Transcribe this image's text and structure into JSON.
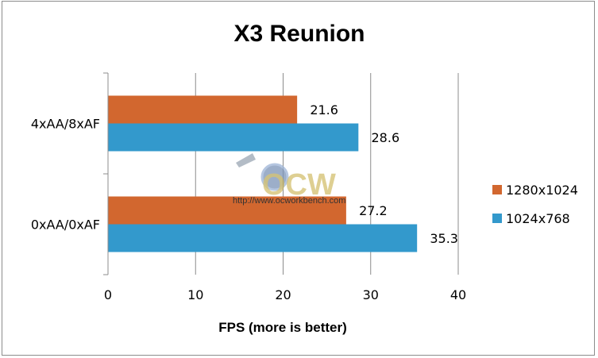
{
  "chart_data": {
    "type": "bar",
    "orientation": "horizontal",
    "title": "X3 Reunion",
    "xlabel": "FPS (more is better)",
    "ylabel": "",
    "categories": [
      "4xAA/8xAF",
      "0xAA/0xAF"
    ],
    "series": [
      {
        "name": "1280x1024",
        "color": "#D2672F",
        "values": [
          21.6,
          27.2
        ]
      },
      {
        "name": "1024x768",
        "color": "#3399CC",
        "values": [
          28.6,
          35.3
        ]
      }
    ],
    "xlim": [
      0,
      40
    ],
    "xticks": [
      0,
      10,
      20,
      30,
      40
    ],
    "grid": "vertical",
    "legend_position": "right",
    "data_labels": true
  },
  "watermark": {
    "logo_text": "OCW",
    "url": "http://www.ocworkbench.com"
  }
}
